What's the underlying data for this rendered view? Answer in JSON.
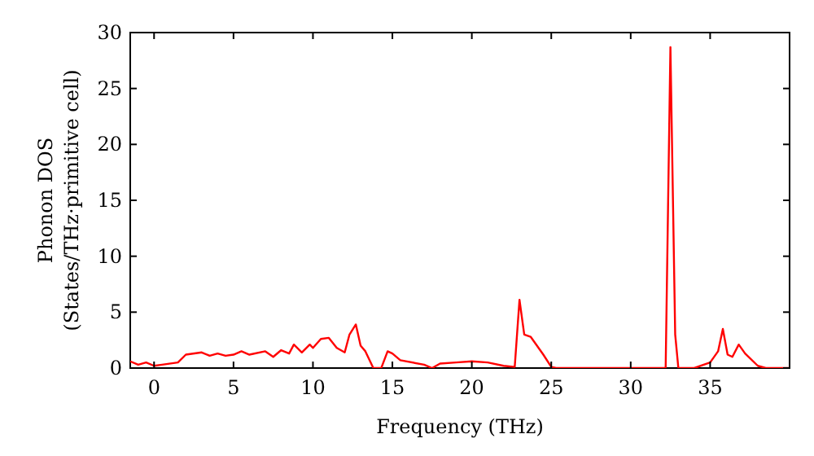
{
  "chart_data": {
    "type": "line",
    "xlabel": "Frequency (THz)",
    "ylabel": "Phonon DOS\n(States/THz·primitive cell)",
    "series": [
      {
        "color": "#ff0000",
        "x": [
          -1.5,
          -1,
          -0.5,
          0,
          0.5,
          1.5,
          2,
          3,
          3.5,
          4,
          4.5,
          5,
          5.5,
          6,
          7,
          7.5,
          8,
          8.5,
          8.8,
          9.3,
          9.8,
          10,
          10.5,
          11,
          11.5,
          12,
          12.3,
          12.7,
          13,
          13.3,
          13.8,
          14.3,
          14.7,
          15,
          15.5,
          17,
          17.5,
          18,
          19,
          20,
          21,
          22,
          22.7,
          23,
          23.3,
          23.7,
          24.5,
          25,
          25.3,
          32.2,
          32.5,
          32.8,
          33,
          34,
          35,
          35.5,
          35.8,
          36.1,
          36.4,
          36.8,
          37.2,
          38,
          38.5,
          40
        ],
        "values": [
          0.6,
          0.3,
          0.5,
          0.2,
          0.3,
          0.5,
          1.2,
          1.4,
          1.1,
          1.3,
          1.1,
          1.2,
          1.5,
          1.2,
          1.5,
          1.0,
          1.6,
          1.3,
          2.1,
          1.4,
          2.1,
          1.8,
          2.6,
          2.7,
          1.8,
          1.4,
          3.0,
          3.9,
          2.0,
          1.5,
          0,
          0,
          1.5,
          1.3,
          0.7,
          0.3,
          0,
          0.4,
          0.5,
          0.6,
          0.5,
          0.2,
          0.1,
          6.1,
          3.0,
          2.8,
          1.2,
          0.1,
          0,
          0,
          28.7,
          3,
          0,
          0,
          0.5,
          1.5,
          3.5,
          1.2,
          1.0,
          2.1,
          1.3,
          0.2,
          0,
          0
        ]
      }
    ],
    "xlim": [
      -1.5,
      40
    ],
    "xticks": [
      0,
      5,
      10,
      15,
      20,
      25,
      30,
      35
    ],
    "ylim": [
      0,
      30
    ],
    "yticks": [
      0,
      5,
      10,
      15,
      20,
      25,
      30
    ],
    "grid": false
  }
}
